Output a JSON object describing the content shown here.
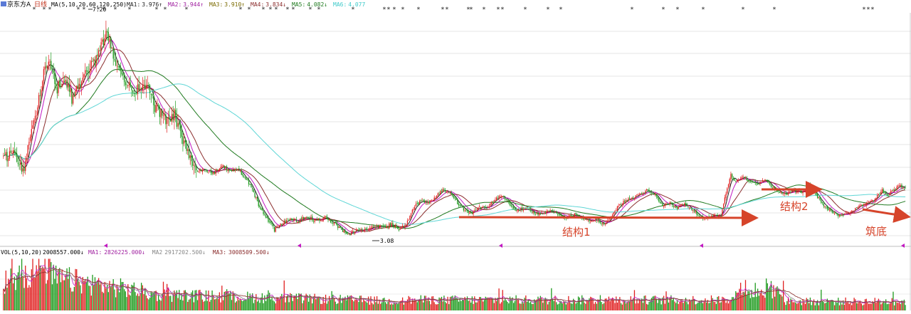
{
  "header": {
    "stock_name": "京东方A",
    "period": "日线",
    "ma_params": "MA(5,10,20,60,120,250)",
    "ma_values": [
      {
        "label": "MA1:",
        "value": "3.976↑",
        "color": "#222222"
      },
      {
        "label": "MA2:",
        "value": "3.944↑",
        "color": "#a020a0"
      },
      {
        "label": "MA3:",
        "value": "3.910↑",
        "color": "#7a6a00"
      },
      {
        "label": "MA4:",
        "value": "3.834↓",
        "color": "#8b2d2d"
      },
      {
        "label": "MA5:",
        "value": "4.082↓",
        "color": "#1f7a1f"
      },
      {
        "label": "MA6:",
        "value": "4.077",
        "color": "#3ecaca"
      }
    ]
  },
  "volume_header": {
    "params": "VOL(5,10,20)",
    "vol_value": "2008557.000↓",
    "ma_values": [
      {
        "label": "MA1:",
        "value": "2826225.000↓",
        "color": "#a020a0"
      },
      {
        "label": "MA2",
        "value": "2917202.500↓",
        "color": "#888888"
      },
      {
        "label": "MA3:",
        "value": "3008509.500↓",
        "color": "#8b2d2d"
      }
    ]
  },
  "annotations": {
    "high_label": "7.20",
    "low_label": "3.08",
    "structure1": "结构1",
    "structure2": "结构2",
    "bottoming": "筑底"
  },
  "chart_data": {
    "type": "candlestick",
    "price_key_points": [
      [
        0,
        4.55
      ],
      [
        5,
        4.65
      ],
      [
        10,
        4.6
      ],
      [
        16,
        4.3
      ],
      [
        22,
        4.9
      ],
      [
        28,
        5.6
      ],
      [
        34,
        6.3
      ],
      [
        38,
        6.45
      ],
      [
        44,
        5.9
      ],
      [
        50,
        6.1
      ],
      [
        56,
        5.7
      ],
      [
        62,
        6.0
      ],
      [
        70,
        6.25
      ],
      [
        78,
        6.55
      ],
      [
        84,
        6.95
      ],
      [
        88,
        6.7
      ],
      [
        94,
        6.25
      ],
      [
        100,
        6.0
      ],
      [
        106,
        5.85
      ],
      [
        112,
        5.9
      ],
      [
        118,
        5.95
      ],
      [
        124,
        5.55
      ],
      [
        130,
        5.35
      ],
      [
        136,
        5.25
      ],
      [
        140,
        5.4
      ],
      [
        146,
        5.0
      ],
      [
        152,
        4.55
      ],
      [
        158,
        4.3
      ],
      [
        164,
        4.35
      ],
      [
        172,
        4.28
      ],
      [
        180,
        4.4
      ],
      [
        186,
        4.3
      ],
      [
        192,
        4.35
      ],
      [
        198,
        4.2
      ],
      [
        204,
        3.95
      ],
      [
        210,
        3.6
      ],
      [
        216,
        3.4
      ],
      [
        222,
        3.18
      ],
      [
        228,
        3.3
      ],
      [
        234,
        3.4
      ],
      [
        240,
        3.35
      ],
      [
        248,
        3.45
      ],
      [
        256,
        3.35
      ],
      [
        264,
        3.42
      ],
      [
        272,
        3.3
      ],
      [
        278,
        3.15
      ],
      [
        284,
        3.1
      ],
      [
        290,
        3.2
      ],
      [
        296,
        3.18
      ],
      [
        304,
        3.25
      ],
      [
        312,
        3.22
      ],
      [
        318,
        3.3
      ],
      [
        324,
        3.2
      ],
      [
        330,
        3.3
      ],
      [
        336,
        3.6
      ],
      [
        342,
        3.75
      ],
      [
        348,
        3.7
      ],
      [
        354,
        3.82
      ],
      [
        360,
        3.95
      ],
      [
        366,
        3.9
      ],
      [
        372,
        3.7
      ],
      [
        378,
        3.55
      ],
      [
        384,
        3.5
      ],
      [
        390,
        3.62
      ],
      [
        396,
        3.6
      ],
      [
        402,
        3.75
      ],
      [
        408,
        3.85
      ],
      [
        414,
        3.7
      ],
      [
        420,
        3.55
      ],
      [
        426,
        3.6
      ],
      [
        432,
        3.55
      ],
      [
        438,
        3.48
      ],
      [
        444,
        3.52
      ],
      [
        450,
        3.55
      ],
      [
        456,
        3.45
      ],
      [
        462,
        3.42
      ],
      [
        468,
        3.48
      ],
      [
        474,
        3.4
      ],
      [
        480,
        3.35
      ],
      [
        486,
        3.38
      ],
      [
        492,
        3.28
      ],
      [
        498,
        3.45
      ],
      [
        504,
        3.65
      ],
      [
        510,
        3.75
      ],
      [
        516,
        3.8
      ],
      [
        522,
        3.88
      ],
      [
        528,
        3.95
      ],
      [
        534,
        3.85
      ],
      [
        540,
        3.65
      ],
      [
        546,
        3.7
      ],
      [
        552,
        3.6
      ],
      [
        558,
        3.68
      ],
      [
        564,
        3.58
      ],
      [
        570,
        3.45
      ],
      [
        576,
        3.4
      ],
      [
        582,
        3.48
      ],
      [
        588,
        3.45
      ],
      [
        592,
        3.9
      ],
      [
        596,
        4.25
      ],
      [
        600,
        4.1
      ],
      [
        606,
        4.2
      ],
      [
        612,
        4.1
      ],
      [
        618,
        4.05
      ],
      [
        624,
        4.15
      ],
      [
        630,
        4.0
      ],
      [
        636,
        3.9
      ],
      [
        642,
        3.88
      ],
      [
        648,
        3.95
      ],
      [
        654,
        3.9
      ],
      [
        660,
        4.05
      ],
      [
        666,
        3.85
      ],
      [
        672,
        3.65
      ],
      [
        678,
        3.55
      ],
      [
        684,
        3.45
      ],
      [
        690,
        3.5
      ],
      [
        696,
        3.55
      ],
      [
        702,
        3.65
      ],
      [
        708,
        3.7
      ],
      [
        714,
        3.78
      ],
      [
        720,
        3.95
      ],
      [
        724,
        3.85
      ],
      [
        728,
        3.92
      ],
      [
        734,
        4.05
      ],
      [
        740,
        3.95
      ]
    ],
    "ma_series": [
      {
        "window": 5,
        "color": "#222222"
      },
      {
        "window": 10,
        "color": "#c21ac2"
      },
      {
        "window": 20,
        "color": "#8b2d2d"
      },
      {
        "window": 60,
        "color": "#1f7a1f"
      },
      {
        "window": 120,
        "color": "#5fd6d6"
      }
    ],
    "n_bars": 740,
    "ylim": [
      2.95,
      7.35
    ],
    "high": 7.2,
    "low": 3.08,
    "volume_ylim": [
      0,
      100
    ],
    "candle_up_color": "#e02020",
    "candle_down_color": "#1c9a1c"
  }
}
